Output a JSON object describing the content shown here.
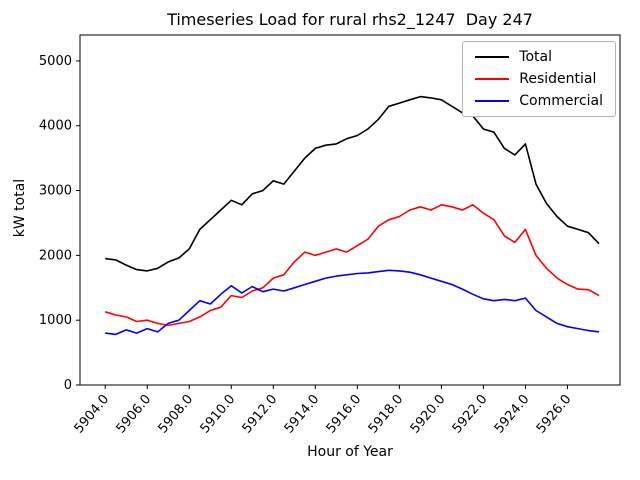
{
  "figure": {
    "title": "Timeseries Load for rural rhs2_1247  Day 247",
    "xlabel": "Hour of Year",
    "ylabel": "kW total"
  },
  "chart_data": {
    "type": "line",
    "title": "Timeseries Load for rural rhs2_1247  Day 247",
    "xlabel": "Hour of Year",
    "ylabel": "kW total",
    "xlim": [
      5902.8,
      5928.5
    ],
    "ylim": [
      0,
      5400
    ],
    "xticks": [
      5904,
      5906,
      5908,
      5910,
      5912,
      5914,
      5916,
      5918,
      5920,
      5922,
      5924,
      5926
    ],
    "xtick_labels": [
      "5904.0",
      "5906.0",
      "5908.0",
      "5910.0",
      "5912.0",
      "5914.0",
      "5916.0",
      "5918.0",
      "5920.0",
      "5922.0",
      "5924.0",
      "5926.0"
    ],
    "yticks": [
      0,
      1000,
      2000,
      3000,
      4000,
      5000
    ],
    "ytick_labels": [
      "0",
      "1000",
      "2000",
      "3000",
      "4000",
      "5000"
    ],
    "grid": false,
    "legend_position": "upper right",
    "x": [
      5904.0,
      5904.5,
      5905.0,
      5905.5,
      5906.0,
      5906.5,
      5907.0,
      5907.5,
      5908.0,
      5908.5,
      5909.0,
      5909.5,
      5910.0,
      5910.5,
      5911.0,
      5911.5,
      5912.0,
      5912.5,
      5913.0,
      5913.5,
      5914.0,
      5914.5,
      5915.0,
      5915.5,
      5916.0,
      5916.5,
      5917.0,
      5917.5,
      5918.0,
      5918.5,
      5919.0,
      5919.5,
      5920.0,
      5920.5,
      5921.0,
      5921.5,
      5922.0,
      5922.5,
      5923.0,
      5923.5,
      5924.0,
      5924.5,
      5925.0,
      5925.5,
      5926.0,
      5926.5,
      5927.0,
      5927.5
    ],
    "series": [
      {
        "name": "Total",
        "color": "#000000",
        "values": [
          1950,
          1930,
          1850,
          1780,
          1760,
          1800,
          1900,
          1960,
          2100,
          2400,
          2550,
          2700,
          2850,
          2780,
          2950,
          3000,
          3150,
          3100,
          3300,
          3500,
          3650,
          3700,
          3720,
          3800,
          3850,
          3950,
          4100,
          4300,
          4350,
          4400,
          4450,
          4430,
          4400,
          4300,
          4200,
          4150,
          3950,
          3900,
          3650,
          3550,
          3720,
          3100,
          2800,
          2600,
          2450,
          2400,
          2350,
          2180
        ]
      },
      {
        "name": "Residential",
        "color": "#ff0000",
        "values": [
          1130,
          1080,
          1050,
          980,
          1000,
          950,
          920,
          950,
          980,
          1050,
          1150,
          1200,
          1380,
          1350,
          1450,
          1500,
          1650,
          1700,
          1900,
          2050,
          2000,
          2050,
          2100,
          2050,
          2150,
          2250,
          2450,
          2550,
          2600,
          2700,
          2750,
          2700,
          2780,
          2750,
          2700,
          2780,
          2650,
          2550,
          2300,
          2200,
          2400,
          2000,
          1800,
          1650,
          1550,
          1480,
          1470,
          1380
        ]
      },
      {
        "name": "Commercial",
        "color": "#0000ff",
        "values": [
          800,
          780,
          850,
          800,
          870,
          820,
          950,
          1000,
          1150,
          1300,
          1250,
          1400,
          1530,
          1420,
          1520,
          1440,
          1480,
          1450,
          1500,
          1550,
          1600,
          1650,
          1680,
          1700,
          1720,
          1730,
          1750,
          1770,
          1760,
          1740,
          1700,
          1650,
          1600,
          1550,
          1480,
          1400,
          1330,
          1300,
          1320,
          1300,
          1340,
          1150,
          1050,
          950,
          900,
          870,
          840,
          820
        ]
      }
    ]
  }
}
